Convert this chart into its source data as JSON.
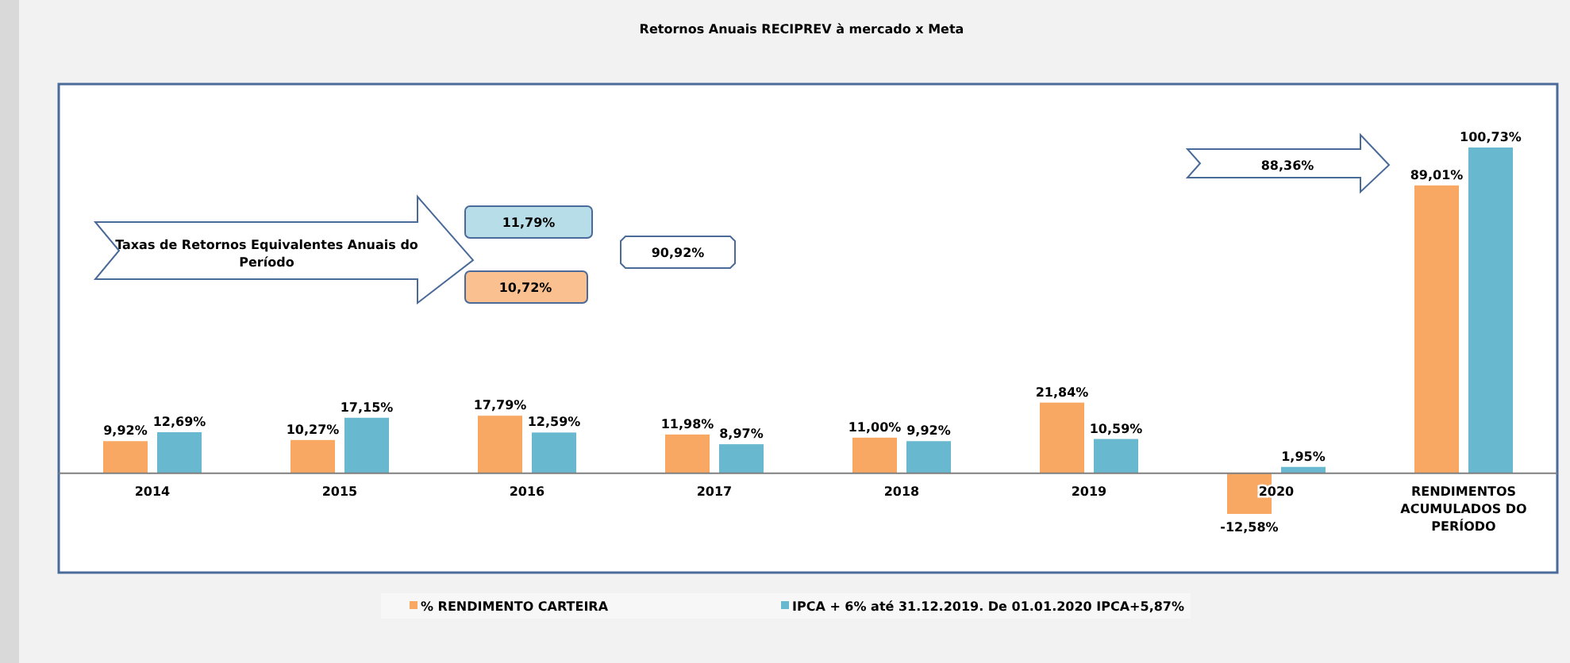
{
  "chart_data": {
    "type": "bar",
    "title": "Retornos Anuais RECIPREV à mercado x  Meta",
    "categories": [
      "2014",
      "2015",
      "2016",
      "2017",
      "2018",
      "2019",
      "2020",
      "RENDIMENTOS ACUMULADOS DO PERÍODO"
    ],
    "series": [
      {
        "name": "% RENDIMENTO CARTEIRA",
        "color": "#f8a862",
        "values": [
          9.92,
          10.27,
          17.79,
          11.98,
          11.0,
          21.84,
          -12.58,
          89.01
        ],
        "value_labels": [
          "9,92%",
          "10,27%",
          "17,79%",
          "11,98%",
          "11,00%",
          "21,84%",
          "-12,58%",
          "89,01%"
        ]
      },
      {
        "name": "IPCA + 6% até 31.12.2019. De 01.01.2020  IPCA+5,87%",
        "color": "#68b8cf",
        "values": [
          12.69,
          17.15,
          12.59,
          8.97,
          9.92,
          10.59,
          1.95,
          100.73
        ],
        "value_labels": [
          "12,69%",
          "17,15%",
          "12,59%",
          "8,97%",
          "9,92%",
          "10,59%",
          "1,95%",
          "100,73%"
        ]
      }
    ],
    "legend": "bottom",
    "annotations": [
      "Taxas de Retornos Equivalentes Anuais do Período",
      "11,79%",
      "10,72%",
      "90,92%",
      "88,36%"
    ]
  }
}
